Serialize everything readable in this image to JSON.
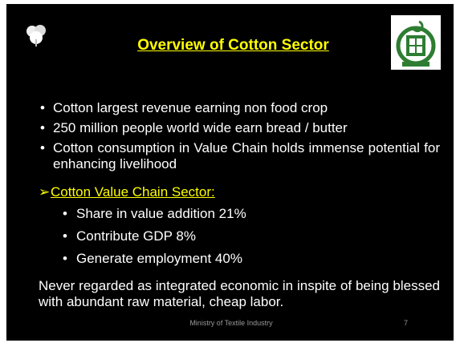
{
  "header": {
    "title": "Overview of Cotton Sector"
  },
  "bullets": [
    "Cotton largest revenue earning non food crop",
    "250 million people world wide earn bread / butter",
    "Cotton consumption in Value Chain holds immense potential for enhancing livelihood"
  ],
  "subheading": "Cotton Value Chain Sector:",
  "sub_bullets": [
    "Share in value addition 21%",
    "Contribute GDP 8%",
    "Generate employment 40%"
  ],
  "paragraph": "Never regarded as integrated economic in inspite of being blessed with abundant raw material, cheap labor.",
  "footer": {
    "text": "Ministry of Textile Industry",
    "page": "7"
  }
}
